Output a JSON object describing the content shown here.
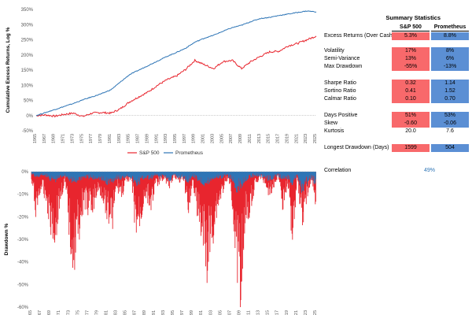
{
  "chart_data": [
    {
      "type": "line",
      "ylabel": "Cumulative Excess Returns, Log %",
      "ylim": [
        -50,
        350
      ],
      "yticks": [
        "-50%",
        "0%",
        "50%",
        "100%",
        "150%",
        "200%",
        "250%",
        "300%",
        "350%"
      ],
      "xticks": [
        "1965",
        "1967",
        "1969",
        "1971",
        "1973",
        "1975",
        "1977",
        "1979",
        "1981",
        "1983",
        "1985",
        "1987",
        "1989",
        "1991",
        "1993",
        "1995",
        "1997",
        "1999",
        "2001",
        "2003",
        "2005",
        "2007",
        "2009",
        "2011",
        "2013",
        "2015",
        "2017",
        "2019",
        "2021",
        "2023",
        "2025"
      ],
      "legend": {
        "placement": "bottom",
        "entries": [
          "S&P 500",
          "Prometheus"
        ]
      },
      "series": [
        {
          "name": "S&P 500",
          "color": "#e8252e",
          "x": [
            1965,
            1967,
            1969,
            1971,
            1973,
            1975,
            1977,
            1979,
            1981,
            1983,
            1985,
            1987,
            1989,
            1991,
            1993,
            1995,
            1997,
            1999,
            2001,
            2003,
            2005,
            2007,
            2009,
            2011,
            2013,
            2015,
            2017,
            2019,
            2021,
            2023,
            2025
          ],
          "y": [
            0,
            2,
            -2,
            4,
            8,
            -3,
            8,
            10,
            8,
            22,
            45,
            62,
            78,
            100,
            118,
            130,
            152,
            182,
            168,
            155,
            178,
            182,
            155,
            178,
            195,
            210,
            212,
            230,
            238,
            250,
            262
          ]
        },
        {
          "name": "Prometheus",
          "color": "#2e75b6",
          "x": [
            1965,
            1967,
            1969,
            1971,
            1973,
            1975,
            1977,
            1979,
            1981,
            1983,
            1985,
            1987,
            1989,
            1991,
            1993,
            1995,
            1997,
            1999,
            2001,
            2003,
            2005,
            2007,
            2009,
            2011,
            2013,
            2015,
            2017,
            2019,
            2021,
            2023,
            2025
          ],
          "y": [
            0,
            10,
            20,
            30,
            40,
            52,
            62,
            72,
            85,
            110,
            135,
            150,
            165,
            180,
            195,
            208,
            222,
            242,
            255,
            265,
            278,
            290,
            298,
            310,
            320,
            324,
            330,
            335,
            340,
            345,
            342
          ]
        }
      ]
    },
    {
      "type": "area",
      "ylabel": "Drawdown %",
      "ylim": [
        -60,
        0
      ],
      "yticks": [
        "-60%",
        "-50%",
        "-40%",
        "-30%",
        "-20%",
        "-10%",
        "0%"
      ],
      "xticks": [
        "65",
        "67",
        "69",
        "71",
        "73",
        "75",
        "77",
        "79",
        "81",
        "83",
        "85",
        "87",
        "89",
        "91",
        "93",
        "95",
        "97",
        "99",
        "01",
        "03",
        "05",
        "07",
        "09",
        "11",
        "13",
        "15",
        "17",
        "19",
        "21",
        "23",
        "25"
      ],
      "series": [
        {
          "name": "S&P 500",
          "color": "#e8252e",
          "x": [
            1965,
            1966,
            1967,
            1968,
            1969,
            1970,
            1971,
            1972,
            1973,
            1974,
            1975,
            1976,
            1977,
            1978,
            1979,
            1980,
            1981,
            1982,
            1983,
            1984,
            1985,
            1986,
            1987,
            1988,
            1989,
            1990,
            1991,
            1992,
            1993,
            1994,
            1995,
            1996,
            1997,
            1998,
            1999,
            2000,
            2001,
            2002,
            2003,
            2004,
            2005,
            2006,
            2007,
            2008,
            2009,
            2010,
            2011,
            2012,
            2013,
            2014,
            2015,
            2016,
            2017,
            2018,
            2019,
            2020,
            2021,
            2022,
            2023,
            2024,
            2025
          ],
          "y": [
            -5,
            -20,
            -8,
            -12,
            -25,
            -33,
            -15,
            -5,
            -30,
            -45,
            -30,
            -15,
            -20,
            -18,
            -10,
            -12,
            -20,
            -25,
            -8,
            -12,
            -5,
            -3,
            -30,
            -25,
            -10,
            -18,
            -8,
            -5,
            -3,
            -8,
            -2,
            -5,
            -3,
            -18,
            -5,
            -20,
            -35,
            -47,
            -35,
            -20,
            -12,
            -5,
            -5,
            -38,
            -55,
            -25,
            -18,
            -8,
            -3,
            -5,
            -10,
            -8,
            -2,
            -18,
            -5,
            -33,
            -3,
            -25,
            -12,
            -5,
            -17
          ]
        },
        {
          "name": "Prometheus",
          "color": "#2e75b6",
          "x": [
            1965,
            1966,
            1967,
            1968,
            1969,
            1970,
            1971,
            1972,
            1973,
            1974,
            1975,
            1976,
            1977,
            1978,
            1979,
            1980,
            1981,
            1982,
            1983,
            1984,
            1985,
            1986,
            1987,
            1988,
            1989,
            1990,
            1991,
            1992,
            1993,
            1994,
            1995,
            1996,
            1997,
            1998,
            1999,
            2000,
            2001,
            2002,
            2003,
            2004,
            2005,
            2006,
            2007,
            2008,
            2009,
            2010,
            2011,
            2012,
            2013,
            2014,
            2015,
            2016,
            2017,
            2018,
            2019,
            2020,
            2021,
            2022,
            2023,
            2024,
            2025
          ],
          "y": [
            -1,
            -3,
            -2,
            -2,
            -4,
            -5,
            -3,
            -2,
            -4,
            -6,
            -4,
            -3,
            -3,
            -4,
            -3,
            -5,
            -6,
            -5,
            -3,
            -4,
            -2,
            -3,
            -7,
            -5,
            -3,
            -4,
            -2,
            -3,
            -2,
            -5,
            -2,
            -3,
            -3,
            -5,
            -2,
            -4,
            -6,
            -7,
            -4,
            -3,
            -3,
            -2,
            -3,
            -9,
            -8,
            -4,
            -3,
            -2,
            -2,
            -3,
            -4,
            -3,
            -2,
            -4,
            -3,
            -6,
            -2,
            -11,
            -6,
            -3,
            -7
          ]
        }
      ]
    }
  ],
  "summary": {
    "title": "Summary Statistics",
    "col1": "S&P 500",
    "col2": "Prometheus",
    "rows": [
      {
        "label": "Excess Returns (Over Cash)",
        "v1": "5.3%",
        "v2": "8.8%"
      },
      {
        "label": "Volatility",
        "v1": "17%",
        "v2": "8%"
      },
      {
        "label": "Semi-Variance",
        "v1": "13%",
        "v2": "6%"
      },
      {
        "label": "Max Drawdown",
        "v1": "-55%",
        "v2": "-13%"
      },
      {
        "label": "Sharpe Ratio",
        "v1": "0.32",
        "v2": "1.14"
      },
      {
        "label": "Sortino Ratio",
        "v1": "0.41",
        "v2": "1.52"
      },
      {
        "label": "Calmar Ratio",
        "v1": "0.10",
        "v2": "0.70"
      },
      {
        "label": "Days Positive",
        "v1": "51%",
        "v2": "53%"
      },
      {
        "label": "Skew",
        "v1": "-0.60",
        "v2": "-0.06"
      },
      {
        "label": "Kurtosis",
        "v1": "20.0",
        "v2": "7.6"
      },
      {
        "label": "Longest Drawdown (Days)",
        "v1": "1599",
        "v2": "504"
      }
    ],
    "correlation_label": "Correlation",
    "correlation_value": "49%"
  }
}
